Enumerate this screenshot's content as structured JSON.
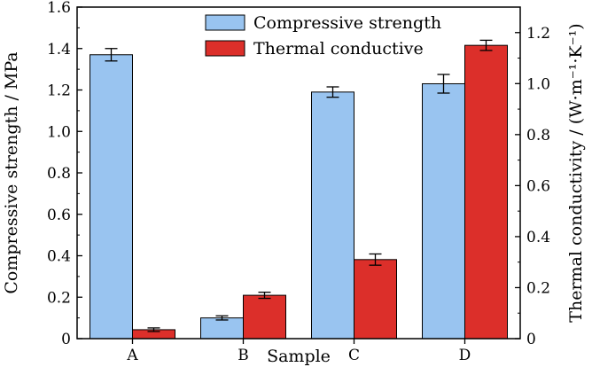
{
  "chart_data": {
    "type": "bar",
    "categories": [
      "A",
      "B",
      "C",
      "D"
    ],
    "xlabel": "Sample",
    "ylabel_left": "Compressive strength / MPa",
    "ylabel_right": "Thermal conductivity / (W·m⁻¹·K⁻¹)",
    "ylim_left": [
      0,
      1.6
    ],
    "ylim_right": [
      0,
      1.3
    ],
    "yticks_left": [
      "0",
      "0.2",
      "0.4",
      "0.6",
      "0.8",
      "1.0",
      "1.2",
      "1.4",
      "1.6"
    ],
    "yticks_right": [
      "0",
      "0.2",
      "0.4",
      "0.6",
      "0.8",
      "1.0",
      "1.2"
    ],
    "legend_position": "top-center",
    "grid": false,
    "series": [
      {
        "name": "Compressive strength",
        "axis": "left",
        "color": "#99c4f0",
        "values": [
          1.37,
          0.1,
          1.19,
          1.23
        ],
        "errors": [
          0.03,
          0.01,
          0.025,
          0.045
        ]
      },
      {
        "name": "Thermal conductive",
        "axis": "right",
        "color": "#dc2f2a",
        "values": [
          0.035,
          0.17,
          0.31,
          1.15
        ],
        "errors": [
          0.007,
          0.012,
          0.022,
          0.02
        ]
      }
    ]
  }
}
